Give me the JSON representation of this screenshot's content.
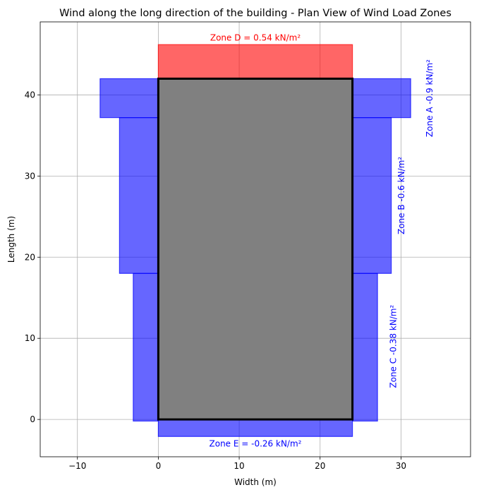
{
  "chart_data": {
    "type": "plan-view",
    "title": "Wind along the long direction of the building - Plan View of Wind Load Zones",
    "xlabel": "Width (m)",
    "ylabel": "Length (m)",
    "xlim": [
      -14.6,
      38.6
    ],
    "ylim": [
      -4.6,
      49
    ],
    "xticks": [
      -10,
      0,
      10,
      20,
      30
    ],
    "yticks": [
      0,
      10,
      20,
      30,
      40
    ],
    "grid": true,
    "colors": {
      "suction": "#0000ff",
      "pressure": "#ff0000",
      "building": "#808080"
    },
    "building": {
      "x": [
        0,
        24
      ],
      "y": [
        0,
        42
      ]
    },
    "zones": [
      {
        "id": "D",
        "label": "Zone D = 0.54 kN/m²",
        "value": 0.54,
        "unit": "kN/m²",
        "kind": "pressure",
        "rects": [
          {
            "x": [
              0,
              24
            ],
            "y": [
              42,
              46.2
            ]
          }
        ],
        "label_pos": {
          "x": 12,
          "y": 47,
          "rotate": 0
        }
      },
      {
        "id": "E",
        "label": "Zone E = -0.26 kN/m²",
        "value": -0.26,
        "unit": "kN/m²",
        "kind": "suction",
        "rects": [
          {
            "x": [
              0,
              24
            ],
            "y": [
              -2.1,
              0
            ]
          }
        ],
        "label_pos": {
          "x": 12,
          "y": -3.05,
          "rotate": 0
        }
      },
      {
        "id": "A",
        "label": "Zone A -0.9 kN/m²",
        "value": -0.9,
        "unit": "kN/m²",
        "kind": "suction",
        "rects": [
          {
            "x": [
              -7.2,
              0
            ],
            "y": [
              37.2,
              42
            ]
          },
          {
            "x": [
              24,
              31.2
            ],
            "y": [
              37.2,
              42
            ]
          }
        ],
        "label_pos": {
          "x": 33.6,
          "y": 39.6,
          "rotate": -90
        }
      },
      {
        "id": "B",
        "label": "Zone B -0.6 kN/m²",
        "value": -0.6,
        "unit": "kN/m²",
        "kind": "suction",
        "rects": [
          {
            "x": [
              -4.8,
              0
            ],
            "y": [
              18,
              37.2
            ]
          },
          {
            "x": [
              24,
              28.8
            ],
            "y": [
              18,
              37.2
            ]
          }
        ],
        "label_pos": {
          "x": 30.1,
          "y": 27.6,
          "rotate": -90
        }
      },
      {
        "id": "C",
        "label": "Zone C -0.38 kN/m²",
        "value": -0.38,
        "unit": "kN/m²",
        "kind": "suction",
        "rects": [
          {
            "x": [
              -3.1,
              0
            ],
            "y": [
              -0.2,
              18
            ]
          },
          {
            "x": [
              24,
              27.1
            ],
            "y": [
              -0.2,
              18
            ]
          }
        ],
        "label_pos": {
          "x": 29.1,
          "y": 9,
          "rotate": -90
        }
      }
    ]
  }
}
